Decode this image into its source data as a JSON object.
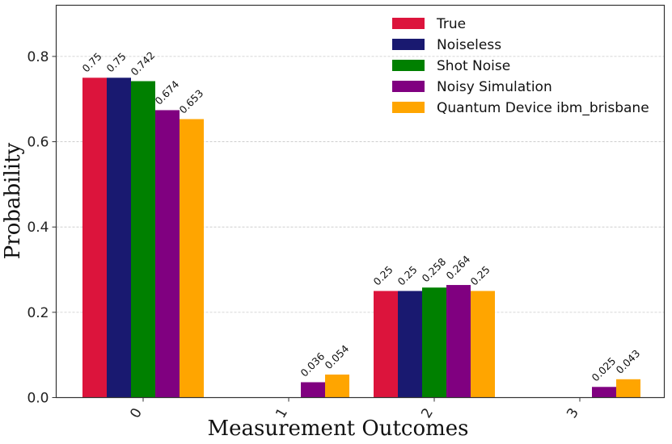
{
  "chart_data": {
    "type": "bar",
    "title": "",
    "xlabel": "Measurement Outcomes",
    "ylabel": "Probability",
    "categories": [
      "0",
      "1",
      "2",
      "3"
    ],
    "ylim": [
      0,
      0.92
    ],
    "yticks": [
      "0.0",
      "0.2",
      "0.4",
      "0.6",
      "0.8"
    ],
    "ytick_values": [
      0,
      0.2,
      0.4,
      0.6,
      0.8
    ],
    "grid": true,
    "legend_position": "top-right",
    "series": [
      {
        "name": "True",
        "color": "#DC143C",
        "values": [
          0.75,
          0,
          0.25,
          0
        ],
        "labels": [
          "0.75",
          "",
          "0.25",
          ""
        ]
      },
      {
        "name": "Noiseless",
        "color": "#191970",
        "values": [
          0.75,
          0,
          0.25,
          0
        ],
        "labels": [
          "0.75",
          "",
          "0.25",
          ""
        ]
      },
      {
        "name": "Shot Noise",
        "color": "#008000",
        "values": [
          0.742,
          0,
          0.258,
          0
        ],
        "labels": [
          "0.742",
          "",
          "0.258",
          ""
        ]
      },
      {
        "name": "Noisy Simulation",
        "color": "#800080",
        "values": [
          0.674,
          0.036,
          0.264,
          0.025
        ],
        "labels": [
          "0.674",
          "0.036",
          "0.264",
          "0.025"
        ]
      },
      {
        "name": "Quantum Device ibm_brisbane",
        "color": "#FFA500",
        "values": [
          0.653,
          0.054,
          0.25,
          0.043
        ],
        "labels": [
          "0.653",
          "0.054",
          "0.25",
          "0.043"
        ]
      }
    ]
  }
}
